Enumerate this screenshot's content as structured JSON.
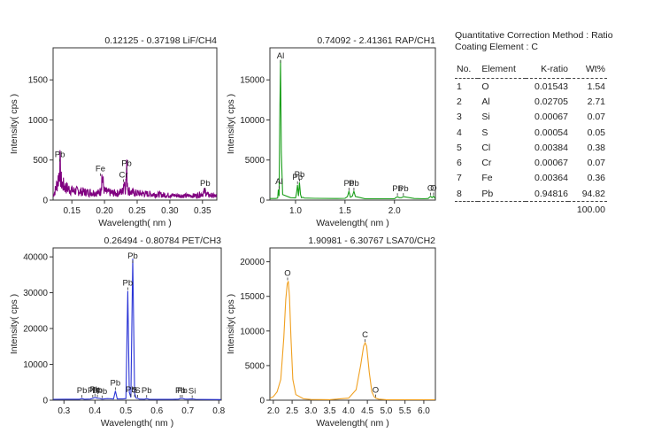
{
  "chart_data": [
    {
      "type": "line",
      "title": "0.12125 - 0.37198  LiF/CH4",
      "xlabel": "Wavelength( nm )",
      "ylabel": "Intensity( cps )",
      "xlim": [
        0.12125,
        0.37198
      ],
      "ylim": [
        0,
        1900
      ],
      "xticks": [
        0.15,
        0.2,
        0.25,
        0.3,
        0.35
      ],
      "xtick_labels": [
        "0.15",
        "0.20",
        "0.25",
        "0.30",
        "0.35"
      ],
      "yticks": [
        0,
        500,
        1000,
        1500
      ],
      "color": "#800080",
      "noise": true,
      "series": [
        {
          "x": [
            0.1213,
            0.125,
            0.128,
            0.13,
            0.1315,
            0.133,
            0.135,
            0.14,
            0.145,
            0.15,
            0.16,
            0.17,
            0.18,
            0.19,
            0.194,
            0.196,
            0.2,
            0.21,
            0.22,
            0.228,
            0.23,
            0.232,
            0.234,
            0.236,
            0.24,
            0.25,
            0.26,
            0.28,
            0.3,
            0.32,
            0.34,
            0.35,
            0.354,
            0.358,
            0.362,
            0.37,
            0.3719
          ],
          "y": [
            60,
            130,
            220,
            300,
            470,
            260,
            200,
            160,
            140,
            120,
            110,
            100,
            95,
            90,
            110,
            290,
            110,
            90,
            85,
            110,
            260,
            140,
            360,
            130,
            100,
            85,
            80,
            70,
            60,
            55,
            55,
            80,
            110,
            65,
            60,
            50,
            45
          ]
        }
      ],
      "peaks": [
        {
          "label": "Pb",
          "x": 0.1315,
          "y": 470
        },
        {
          "label": "Fe",
          "x": 0.1937,
          "y": 290
        },
        {
          "label": "Pb",
          "x": 0.2338,
          "y": 360
        },
        {
          "label": "Cr",
          "x": 0.229,
          "y": 215
        },
        {
          "label": "Pb",
          "x": 0.3541,
          "y": 110
        }
      ]
    },
    {
      "type": "line",
      "title": "0.74092 - 2.41361  RAP/CH1",
      "xlabel": "Wavelength( nm )",
      "ylabel": "Intensity( cps )",
      "xlim": [
        0.74092,
        2.41361
      ],
      "ylim": [
        0,
        19000
      ],
      "xticks": [
        1.0,
        1.5,
        2.0
      ],
      "xtick_labels": [
        "1.0",
        "1.5",
        "2.0"
      ],
      "yticks": [
        0,
        5000,
        10000,
        15000
      ],
      "color": "#1a9e1a",
      "noise": false,
      "series": [
        {
          "x": [
            0.741,
            0.8,
            0.82,
            0.826,
            0.834,
            0.84,
            0.848,
            0.856,
            0.87,
            0.95,
            1.0,
            1.01,
            1.02,
            1.03,
            1.04,
            1.05,
            1.06,
            1.075,
            1.09,
            1.2,
            1.4,
            1.5,
            1.525,
            1.54,
            1.555,
            1.575,
            1.59,
            1.605,
            1.7,
            2.0,
            2.01,
            2.03,
            2.05,
            2.07,
            2.09,
            2.2,
            2.3,
            2.34,
            2.365,
            2.38,
            2.395,
            2.41
          ],
          "y": [
            200,
            200,
            250,
            1300,
            500,
            10000,
            17500,
            6000,
            700,
            300,
            260,
            900,
            1900,
            500,
            2200,
            700,
            300,
            350,
            250,
            220,
            200,
            220,
            450,
            1100,
            350,
            500,
            1100,
            450,
            180,
            170,
            280,
            420,
            300,
            300,
            430,
            200,
            170,
            200,
            480,
            300,
            500,
            200
          ]
        }
      ],
      "peaks": [
        {
          "label": "Al",
          "x": 0.834,
          "y": 1300
        },
        {
          "label": "Al",
          "x": 0.848,
          "y": 17500
        },
        {
          "label": "Pb",
          "x": 1.02,
          "y": 1900
        },
        {
          "label": "Pb",
          "x": 1.04,
          "y": 2200
        },
        {
          "label": "Pb",
          "x": 1.54,
          "y": 1100
        },
        {
          "label": "Pb",
          "x": 1.59,
          "y": 1100
        },
        {
          "label": "Pb",
          "x": 2.03,
          "y": 420
        },
        {
          "label": "Pb",
          "x": 2.09,
          "y": 430
        },
        {
          "label": "O",
          "x": 2.365,
          "y": 480
        },
        {
          "label": "O",
          "x": 2.395,
          "y": 500
        }
      ]
    },
    {
      "type": "line",
      "title": "0.26494 - 0.80784  PET/CH3",
      "xlabel": "Wavelength( nm )",
      "ylabel": "Intensity( cps )",
      "xlim": [
        0.26494,
        0.80784
      ],
      "ylim": [
        0,
        42500
      ],
      "xticks": [
        0.3,
        0.4,
        0.5,
        0.6,
        0.7,
        0.8
      ],
      "xtick_labels": [
        "0.3",
        "0.4",
        "0.5",
        "0.6",
        "0.7",
        "0.8"
      ],
      "yticks": [
        0,
        10000,
        20000,
        30000,
        40000
      ],
      "color": "#2b35d6",
      "noise": false,
      "series": [
        {
          "x": [
            0.265,
            0.3,
            0.35,
            0.358,
            0.366,
            0.385,
            0.393,
            0.4,
            0.408,
            0.415,
            0.423,
            0.44,
            0.46,
            0.466,
            0.472,
            0.49,
            0.5,
            0.506,
            0.511,
            0.516,
            0.522,
            0.528,
            0.533,
            0.538,
            0.544,
            0.55,
            0.56,
            0.567,
            0.575,
            0.6,
            0.65,
            0.67,
            0.676,
            0.682,
            0.69,
            0.7,
            0.714,
            0.725,
            0.75,
            0.807
          ],
          "y": [
            250,
            260,
            280,
            450,
            280,
            330,
            500,
            800,
            550,
            500,
            300,
            450,
            350,
            2600,
            350,
            350,
            450,
            30500,
            2200,
            800,
            39500,
            2000,
            600,
            500,
            300,
            300,
            280,
            450,
            280,
            230,
            220,
            300,
            480,
            500,
            320,
            300,
            350,
            250,
            200,
            180
          ]
        }
      ],
      "peaks": [
        {
          "label": "Pb",
          "x": 0.358,
          "y": 450
        },
        {
          "label": "Pb",
          "x": 0.393,
          "y": 500
        },
        {
          "label": "Pb",
          "x": 0.4,
          "y": 800
        },
        {
          "label": "Pb",
          "x": 0.408,
          "y": 550
        },
        {
          "label": "Pb",
          "x": 0.423,
          "y": 300
        },
        {
          "label": "Pb",
          "x": 0.466,
          "y": 2600
        },
        {
          "label": "Pb",
          "x": 0.506,
          "y": 30500
        },
        {
          "label": "Pb",
          "x": 0.522,
          "y": 39500
        },
        {
          "label": "Pb",
          "x": 0.516,
          "y": 800
        },
        {
          "label": "S",
          "x": 0.528,
          "y": 600
        },
        {
          "label": "S",
          "x": 0.538,
          "y": 500
        },
        {
          "label": "Pb",
          "x": 0.567,
          "y": 450
        },
        {
          "label": "Pb",
          "x": 0.676,
          "y": 480
        },
        {
          "label": "Pb",
          "x": 0.682,
          "y": 500
        },
        {
          "label": "Si",
          "x": 0.714,
          "y": 350
        }
      ]
    },
    {
      "type": "line",
      "title": "1.90981 - 6.30767  LSA70/CH2",
      "xlabel": "Wavelength( nm )",
      "ylabel": "Intensity( cps )",
      "xlim": [
        1.90981,
        6.30767
      ],
      "ylim": [
        0,
        22000
      ],
      "xticks": [
        2.0,
        2.5,
        3.0,
        3.5,
        4.0,
        4.5,
        5.0,
        5.5,
        6.0
      ],
      "xtick_labels": [
        "2.0",
        "2.5",
        "3.0",
        "3.5",
        "4.0",
        "4.5",
        "5.0",
        "5.5",
        "6.0"
      ],
      "yticks": [
        0,
        5000,
        10000,
        15000,
        20000
      ],
      "color": "#f0a020",
      "noise": false,
      "series": [
        {
          "x": [
            1.91,
            2.0,
            2.1,
            2.2,
            2.28,
            2.33,
            2.37,
            2.4,
            2.43,
            2.47,
            2.52,
            2.6,
            2.8,
            3.0,
            3.5,
            4.0,
            4.2,
            4.32,
            4.4,
            4.44,
            4.48,
            4.55,
            4.62,
            4.68,
            4.72,
            4.8,
            5.0,
            5.5,
            6.0,
            6.3
          ],
          "y": [
            300,
            500,
            1200,
            3000,
            9000,
            14500,
            16800,
            17200,
            15000,
            9000,
            3000,
            800,
            200,
            100,
            80,
            300,
            1500,
            5000,
            7800,
            8300,
            7800,
            4000,
            1200,
            500,
            300,
            150,
            80,
            50,
            50,
            50
          ]
        }
      ],
      "peaks": [
        {
          "label": "O",
          "x": 2.38,
          "y": 17200
        },
        {
          "label": "C",
          "x": 4.44,
          "y": 8300
        },
        {
          "label": "O",
          "x": 4.72,
          "y": 300
        }
      ]
    }
  ],
  "results": {
    "method": "Quantitative Correction Method : Ratio",
    "coating": "Coating Element : C",
    "headers": [
      "No.",
      "Element",
      "K-ratio",
      "Wt%"
    ],
    "rows": [
      [
        "1",
        "O",
        "0.01543",
        "1.54"
      ],
      [
        "2",
        "Al",
        "0.02705",
        "2.71"
      ],
      [
        "3",
        "Si",
        "0.00067",
        "0.07"
      ],
      [
        "4",
        "S",
        "0.00054",
        "0.05"
      ],
      [
        "5",
        "Cl",
        "0.00384",
        "0.38"
      ],
      [
        "6",
        "Cr",
        "0.00067",
        "0.07"
      ],
      [
        "7",
        "Fe",
        "0.00364",
        "0.36"
      ],
      [
        "8",
        "Pb",
        "0.94816",
        "94.82"
      ]
    ],
    "total": "100.00"
  }
}
